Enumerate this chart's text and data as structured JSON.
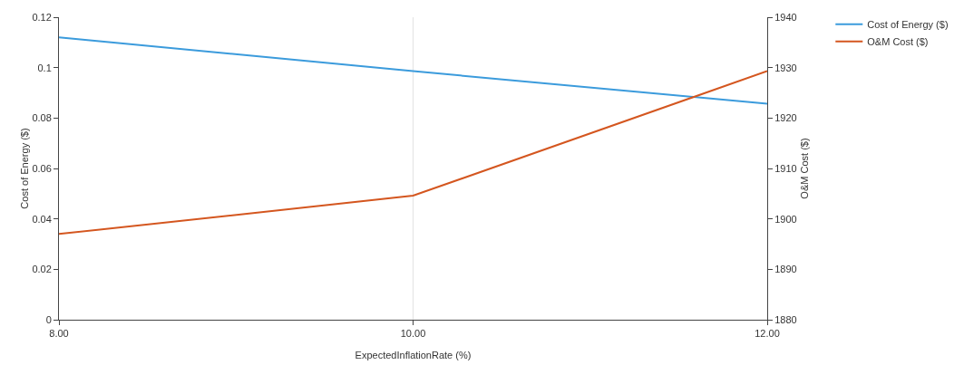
{
  "chart_data": {
    "type": "line",
    "xlabel": "ExpectedInflationRate (%)",
    "ylabel": "Cost of Energy ($)",
    "y2label": "O&M Cost ($)",
    "x": [
      8,
      10,
      12
    ],
    "xlim": [
      8,
      12
    ],
    "xticks": [
      {
        "value": 8,
        "label": "8.00"
      },
      {
        "value": 10,
        "label": "10.00"
      },
      {
        "value": 12,
        "label": "12.00"
      }
    ],
    "ylim": [
      0,
      0.12
    ],
    "yticks": [
      0,
      0.02,
      0.04,
      0.06,
      0.08,
      0.1,
      0.12
    ],
    "y2lim": [
      1880,
      1940
    ],
    "y2ticks": [
      1880,
      1890,
      1900,
      1910,
      1920,
      1930,
      1940
    ],
    "series": [
      {
        "name": "Cost of Energy ($)",
        "color": "#3b9bdc",
        "values": [
          0.112,
          0.0986,
          0.0857
        ]
      },
      {
        "name": "O&M Cost ($)",
        "color": "#d4561f",
        "values": [
          1897,
          1904.6,
          1929.3
        ],
        "axis": "y2"
      }
    ],
    "grid": "x",
    "legend": "top right",
    "marker": "none",
    "line_style": "solid"
  }
}
